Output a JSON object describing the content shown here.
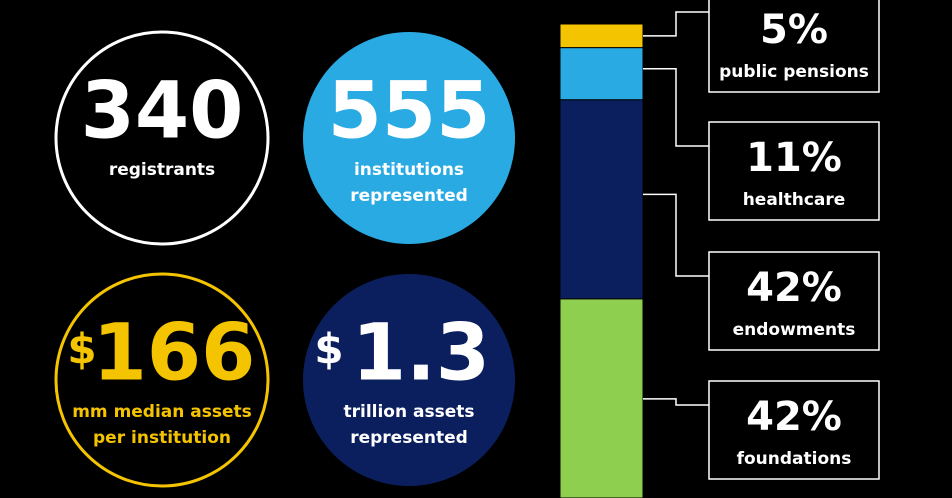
{
  "stats": [
    {
      "currency": null,
      "number": "340",
      "caption": [
        "registrants"
      ],
      "style": "outline",
      "color": "#ffffff"
    },
    {
      "currency": null,
      "number": "555",
      "caption": [
        "institutions",
        "represented"
      ],
      "style": "filled",
      "color": "#2aaae2"
    },
    {
      "currency": "$",
      "number": "166",
      "caption": [
        "mm median assets",
        "per institution"
      ],
      "style": "outline",
      "color": "#f5c400"
    },
    {
      "currency": "$",
      "number": "1.3",
      "caption": [
        "trillion assets",
        "represented"
      ],
      "style": "filled",
      "color": "#0b1f5e"
    }
  ],
  "breakdown": [
    {
      "value": 5,
      "label": "5%",
      "name": "public pensions",
      "color": "#f5c400"
    },
    {
      "value": 11,
      "label": "11%",
      "name": "healthcare",
      "color": "#2aaae2"
    },
    {
      "value": 42,
      "label": "42%",
      "name": "endowments",
      "color": "#0b1f5e"
    },
    {
      "value": 42,
      "label": "42%",
      "name": "foundations",
      "color": "#8fcf4f"
    }
  ]
}
